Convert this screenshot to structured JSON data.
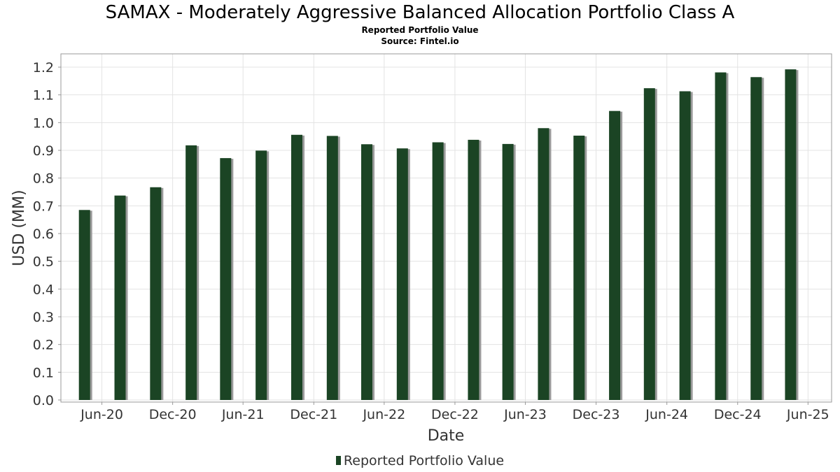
{
  "chart_data": {
    "type": "bar",
    "title": "SAMAX - Moderately Aggressive Balanced Allocation Portfolio Class A",
    "subtitles": [
      "Reported Portfolio Value",
      "Source: Fintel.io"
    ],
    "xlabel": "Date",
    "ylabel": "USD (MM)",
    "ylim": [
      0,
      1.25
    ],
    "yticks": [
      "0.0",
      "0.1",
      "0.2",
      "0.3",
      "0.4",
      "0.5",
      "0.6",
      "0.7",
      "0.8",
      "0.9",
      "1.0",
      "1.1",
      "1.2"
    ],
    "xticks": [
      "Jun-20",
      "Dec-20",
      "Jun-21",
      "Dec-21",
      "Jun-22",
      "Dec-22",
      "Jun-23",
      "Dec-23",
      "Jun-24",
      "Dec-24",
      "Jun-25"
    ],
    "xlim": [
      "2020-03-01",
      "2025-08-15"
    ],
    "grid": true,
    "legend_position": "bottom",
    "series": [
      {
        "name": "Reported Portfolio Value",
        "color": "#1b4424",
        "points": [
          {
            "date": "2020-05-01",
            "value": 0.685
          },
          {
            "date": "2020-08-01",
            "value": 0.737
          },
          {
            "date": "2020-11-01",
            "value": 0.767
          },
          {
            "date": "2021-02-01",
            "value": 0.918
          },
          {
            "date": "2021-05-01",
            "value": 0.872
          },
          {
            "date": "2021-08-01",
            "value": 0.899
          },
          {
            "date": "2021-11-01",
            "value": 0.956
          },
          {
            "date": "2022-02-01",
            "value": 0.952
          },
          {
            "date": "2022-05-01",
            "value": 0.922
          },
          {
            "date": "2022-08-01",
            "value": 0.907
          },
          {
            "date": "2022-11-01",
            "value": 0.929
          },
          {
            "date": "2023-02-01",
            "value": 0.938
          },
          {
            "date": "2023-05-01",
            "value": 0.923
          },
          {
            "date": "2023-08-01",
            "value": 0.98
          },
          {
            "date": "2023-11-01",
            "value": 0.953
          },
          {
            "date": "2024-02-01",
            "value": 1.042
          },
          {
            "date": "2024-05-01",
            "value": 1.124
          },
          {
            "date": "2024-08-01",
            "value": 1.113
          },
          {
            "date": "2024-11-01",
            "value": 1.181
          },
          {
            "date": "2025-02-01",
            "value": 1.164
          },
          {
            "date": "2025-05-01",
            "value": 1.192
          }
        ]
      }
    ]
  }
}
